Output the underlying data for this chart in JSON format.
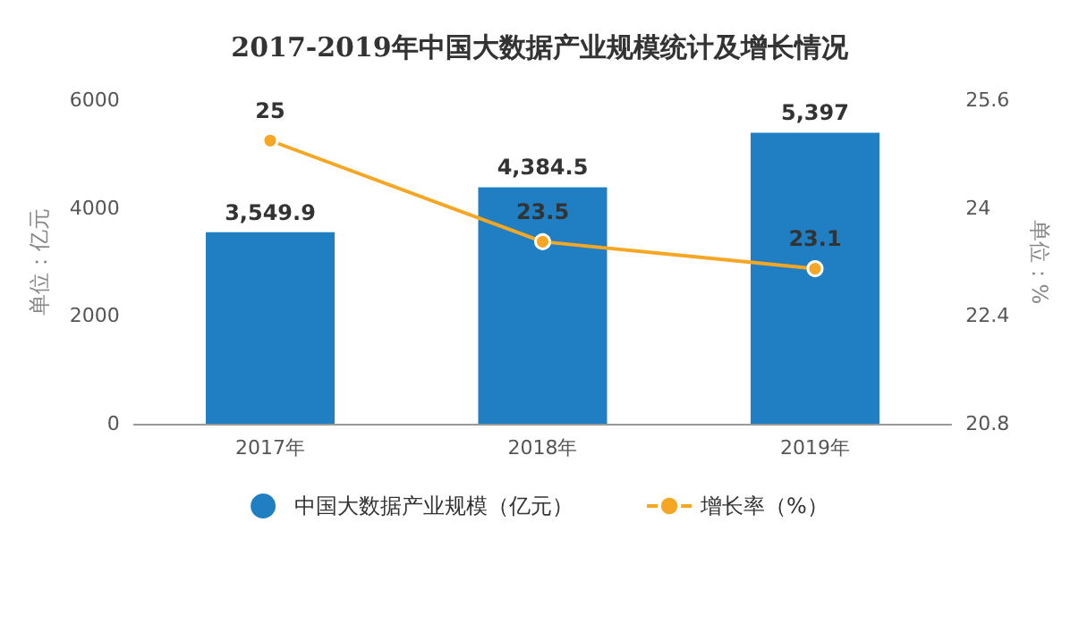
{
  "chart_data": {
    "type": "bar",
    "title": "2017-2019年中国大数据产业规模统计及增长情况",
    "categories": [
      "2017年",
      "2018年",
      "2019年"
    ],
    "series": [
      {
        "name": "中国大数据产业规模（亿元）",
        "color": "#1f7fc2",
        "values": [
          3549.9,
          4384.5,
          5397
        ],
        "value_labels": [
          "3,549.9",
          "4,384.5",
          "5,397"
        ]
      },
      {
        "name": "增长率（%）",
        "type": "line",
        "axis": "y2",
        "color": "#f5a623",
        "values": [
          25,
          23.5,
          23.1
        ],
        "marker": "circle"
      }
    ],
    "ylabel": "单位：亿元",
    "y2label": "单位：%",
    "ylim": [
      0,
      6000
    ],
    "yticks": [
      0,
      2000,
      4000,
      6000
    ],
    "y2lim": [
      20.8,
      25.6
    ],
    "y2ticks": [
      20.8,
      22.4,
      24,
      25.6
    ],
    "data_labels": true,
    "grid": false,
    "legend": "bottom"
  }
}
